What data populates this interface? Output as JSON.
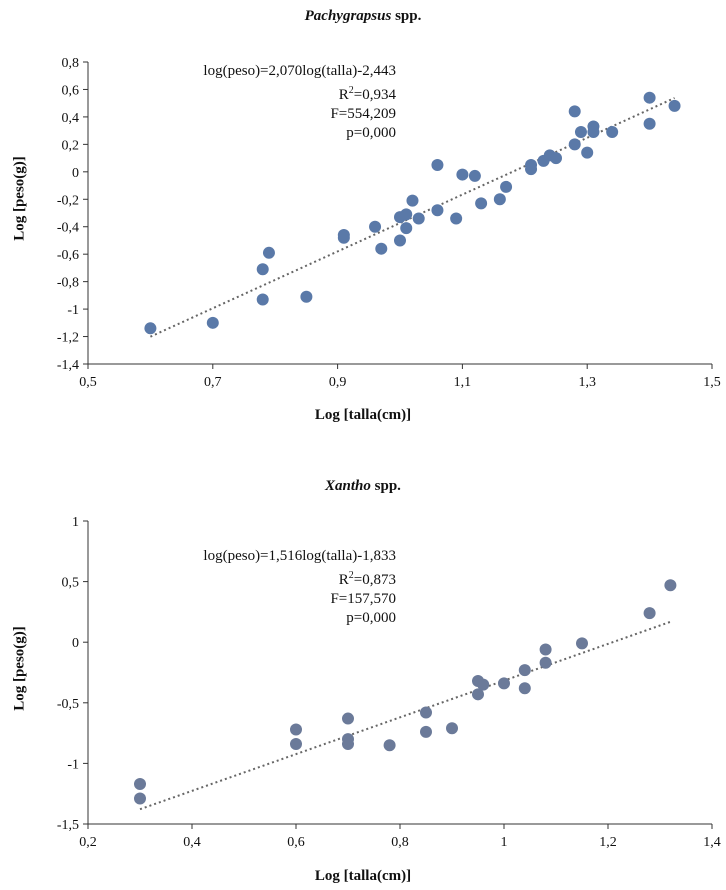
{
  "chart_data": [
    {
      "type": "scatter",
      "title_genus": "Pachygrapsus",
      "title_suffix": " spp.",
      "xlabel": "Log [talla(cm)]",
      "ylabel": "Log [peso(g)]",
      "xlim": [
        0.5,
        1.5
      ],
      "ylim": [
        -1.4,
        0.8
      ],
      "x_ticks": [
        "0,5",
        "0,7",
        "0,9",
        "1,1",
        "1,3",
        "1,5"
      ],
      "y_ticks": [
        "-1,4",
        "-1,2",
        "-1",
        "-0,8",
        "-0,6",
        "-0,4",
        "-0,2",
        "0",
        "0,2",
        "0,4",
        "0,6",
        "0,8"
      ],
      "equation": "log(peso)=2,070log(talla)-2,443",
      "r2_prefix": "R",
      "r2_sup": "2",
      "r2_value": "=0,934",
      "f_stat": "F=554,209",
      "p_value": "p=0,000",
      "trendline": {
        "slope": 2.07,
        "intercept": -2.443,
        "x_range": [
          0.6,
          1.44
        ]
      },
      "marker_color": "#5a79a8",
      "x": [
        0.6,
        0.7,
        0.78,
        0.78,
        0.79,
        0.85,
        0.91,
        0.91,
        0.96,
        0.97,
        1.0,
        1.0,
        1.01,
        1.01,
        1.02,
        1.03,
        1.06,
        1.06,
        1.09,
        1.1,
        1.12,
        1.13,
        1.16,
        1.17,
        1.21,
        1.21,
        1.23,
        1.24,
        1.25,
        1.28,
        1.28,
        1.29,
        1.3,
        1.31,
        1.31,
        1.34,
        1.4,
        1.4,
        1.44
      ],
      "y": [
        -1.14,
        -1.1,
        -0.93,
        -0.71,
        -0.59,
        -0.91,
        -0.46,
        -0.48,
        -0.4,
        -0.56,
        -0.33,
        -0.5,
        -0.41,
        -0.31,
        -0.21,
        -0.34,
        -0.28,
        0.05,
        -0.34,
        -0.02,
        -0.03,
        -0.23,
        -0.2,
        -0.11,
        0.05,
        0.02,
        0.08,
        0.12,
        0.1,
        0.2,
        0.44,
        0.29,
        0.14,
        0.33,
        0.29,
        0.29,
        0.54,
        0.35,
        0.48
      ]
    },
    {
      "type": "scatter",
      "title_genus": "Xantho",
      "title_suffix": " spp.",
      "xlabel": "Log [talla(cm)]",
      "ylabel": "Log [peso(g)]",
      "xlim": [
        0.2,
        1.4
      ],
      "ylim": [
        -1.5,
        1.0
      ],
      "x_ticks": [
        "0,2",
        "0,4",
        "0,6",
        "0,8",
        "1",
        "1,2",
        "1,4"
      ],
      "y_ticks": [
        "-1,5",
        "-1",
        "-0,5",
        "0",
        "0,5",
        "1"
      ],
      "equation": "log(peso)=1,516log(talla)-1,833",
      "r2_prefix": "R",
      "r2_sup": "2",
      "r2_value": "=0,873",
      "f_stat": "F=157,570",
      "p_value": "p=0,000",
      "trendline": {
        "slope": 1.516,
        "intercept": -1.833,
        "x_range": [
          0.3,
          1.32
        ]
      },
      "marker_color": "#6b7a99",
      "x": [
        0.3,
        0.3,
        0.6,
        0.6,
        0.7,
        0.7,
        0.7,
        0.78,
        0.85,
        0.85,
        0.9,
        0.95,
        0.95,
        0.96,
        1.0,
        1.04,
        1.04,
        1.08,
        1.08,
        1.15,
        1.28,
        1.32
      ],
      "y": [
        -1.17,
        -1.29,
        -0.72,
        -0.84,
        -0.63,
        -0.8,
        -0.84,
        -0.85,
        -0.58,
        -0.74,
        -0.71,
        -0.32,
        -0.43,
        -0.35,
        -0.34,
        -0.38,
        -0.23,
        -0.06,
        -0.17,
        -0.01,
        0.24,
        0.47
      ]
    }
  ]
}
